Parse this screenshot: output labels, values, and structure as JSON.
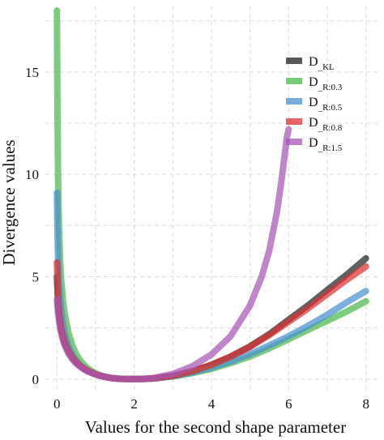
{
  "chart_data": {
    "type": "line",
    "title": "",
    "xlabel": "Values for the second shape parameter",
    "ylabel": "Divergence values",
    "xlim": [
      -0.3,
      8.3
    ],
    "ylim": [
      -0.6,
      18.2
    ],
    "xticks": [
      0,
      2,
      4,
      6,
      8
    ],
    "yticks": [
      0,
      5,
      10,
      15
    ],
    "grid": true,
    "legend_position": "top-right",
    "series": [
      {
        "name": "D_KL",
        "legend_main": "D",
        "legend_sub": "KL",
        "color": "#222222",
        "x": [
          0.0,
          0.03,
          0.06,
          0.1,
          0.15,
          0.2,
          0.3,
          0.4,
          0.5,
          0.6,
          0.7,
          0.8,
          1.0,
          1.2,
          1.4,
          1.6,
          1.8,
          2.0,
          2.2,
          2.5,
          3.0,
          3.5,
          4.0,
          4.5,
          5.0,
          5.5,
          6.0,
          6.5,
          7.0,
          7.5,
          8.0
        ],
        "y": [
          5.0,
          3.6,
          3.0,
          2.5,
          2.08,
          1.78,
          1.34,
          1.04,
          0.82,
          0.65,
          0.51,
          0.4,
          0.23,
          0.12,
          0.055,
          0.015,
          0.003,
          0.0,
          0.005,
          0.035,
          0.16,
          0.38,
          0.7,
          1.1,
          1.6,
          2.2,
          2.9,
          3.6,
          4.35,
          5.1,
          5.9
        ]
      },
      {
        "name": "D_R:0.3",
        "legend_main": "D",
        "legend_sub": "R:0.3",
        "color": "#4cb84c",
        "x": [
          0.0,
          0.01,
          0.02,
          0.03,
          0.05,
          0.08,
          0.1,
          0.15,
          0.2,
          0.3,
          0.4,
          0.5,
          0.6,
          0.7,
          0.8,
          1.0,
          1.2,
          1.4,
          1.6,
          1.8,
          2.0,
          2.2,
          2.5,
          3.0,
          3.5,
          4.0,
          4.5,
          5.0,
          5.5,
          6.0,
          6.5,
          7.0,
          7.5,
          8.0
        ],
        "y": [
          18.0,
          14.0,
          11.5,
          9.8,
          7.6,
          5.9,
          5.1,
          3.95,
          3.2,
          2.25,
          1.65,
          1.22,
          0.92,
          0.7,
          0.52,
          0.28,
          0.14,
          0.06,
          0.02,
          0.004,
          0.0,
          0.004,
          0.03,
          0.13,
          0.29,
          0.5,
          0.78,
          1.1,
          1.5,
          1.95,
          2.4,
          2.85,
          3.3,
          3.8
        ]
      },
      {
        "name": "D_R:0.5",
        "legend_main": "D",
        "legend_sub": "R:0.5",
        "color": "#4a90d0",
        "x": [
          0.0,
          0.01,
          0.02,
          0.03,
          0.05,
          0.08,
          0.1,
          0.15,
          0.2,
          0.3,
          0.4,
          0.5,
          0.6,
          0.7,
          0.8,
          1.0,
          1.2,
          1.4,
          1.6,
          1.8,
          2.0,
          2.2,
          2.5,
          3.0,
          3.5,
          4.0,
          4.5,
          5.0,
          5.5,
          6.0,
          6.5,
          7.0,
          7.5,
          8.0
        ],
        "y": [
          9.1,
          7.6,
          6.6,
          5.9,
          4.9,
          3.95,
          3.5,
          2.75,
          2.25,
          1.6,
          1.2,
          0.9,
          0.69,
          0.53,
          0.41,
          0.23,
          0.12,
          0.055,
          0.018,
          0.004,
          0.0,
          0.004,
          0.03,
          0.14,
          0.32,
          0.56,
          0.86,
          1.22,
          1.65,
          2.1,
          2.6,
          3.15,
          3.75,
          4.3
        ]
      },
      {
        "name": "D_R:0.8",
        "legend_main": "D",
        "legend_sub": "R:0.8",
        "color": "#e03030",
        "x": [
          0.0,
          0.02,
          0.04,
          0.06,
          0.1,
          0.15,
          0.2,
          0.3,
          0.4,
          0.5,
          0.6,
          0.7,
          0.8,
          1.0,
          1.2,
          1.4,
          1.6,
          1.8,
          2.0,
          2.2,
          2.5,
          3.0,
          3.5,
          4.0,
          4.5,
          5.0,
          5.5,
          6.0,
          6.5,
          7.0,
          7.5,
          8.0
        ],
        "y": [
          5.7,
          4.4,
          3.7,
          3.2,
          2.6,
          2.15,
          1.83,
          1.37,
          1.06,
          0.83,
          0.66,
          0.52,
          0.41,
          0.24,
          0.125,
          0.058,
          0.018,
          0.004,
          0.0,
          0.005,
          0.035,
          0.16,
          0.38,
          0.7,
          1.1,
          1.58,
          2.15,
          2.8,
          3.45,
          4.15,
          4.85,
          5.5
        ]
      },
      {
        "name": "D_R:1.5",
        "legend_main": "D",
        "legend_sub": "R:1.5",
        "color": "#a855b5",
        "x": [
          0.0,
          0.03,
          0.06,
          0.1,
          0.15,
          0.2,
          0.3,
          0.4,
          0.5,
          0.6,
          0.7,
          0.8,
          1.0,
          1.2,
          1.4,
          1.6,
          1.8,
          2.0,
          2.2,
          2.5,
          3.0,
          3.5,
          4.0,
          4.5,
          5.0,
          5.3,
          5.5,
          5.7,
          5.8,
          5.9,
          5.95,
          6.0
        ],
        "y": [
          3.9,
          3.2,
          2.75,
          2.3,
          1.92,
          1.64,
          1.24,
          0.96,
          0.76,
          0.6,
          0.47,
          0.37,
          0.22,
          0.12,
          0.055,
          0.016,
          0.003,
          0.0,
          0.008,
          0.055,
          0.25,
          0.62,
          1.2,
          2.1,
          3.6,
          5.0,
          6.3,
          8.2,
          9.5,
          11.0,
          11.8,
          12.2
        ]
      }
    ]
  }
}
